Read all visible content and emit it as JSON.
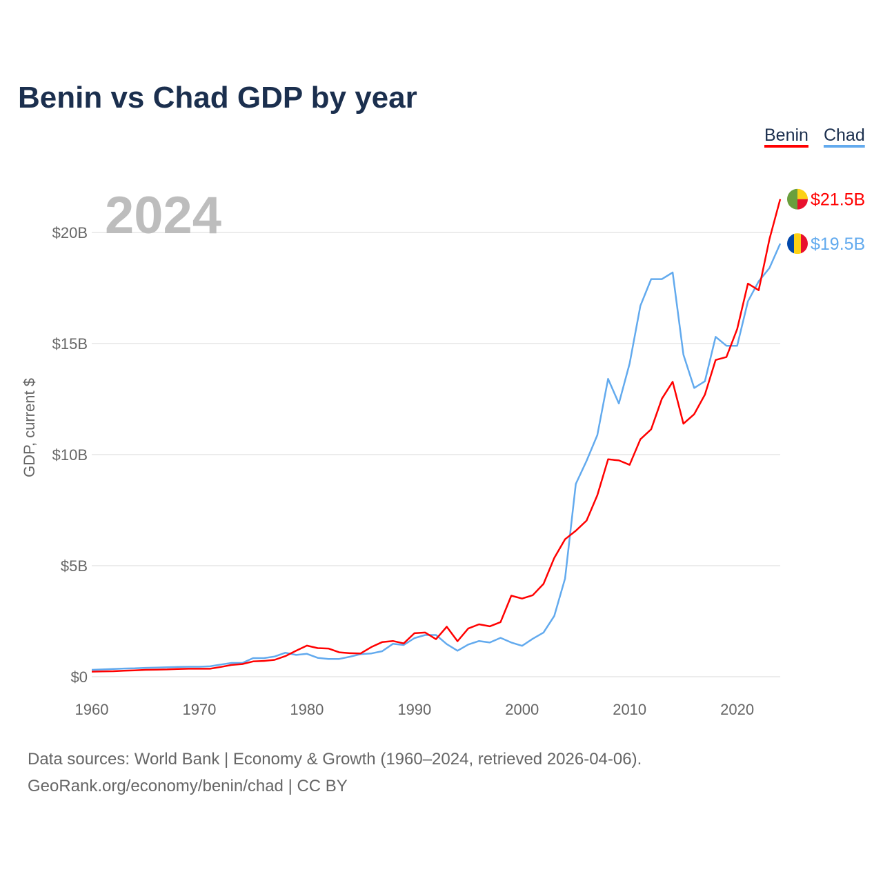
{
  "chart_data": {
    "type": "line",
    "title": "Benin vs Chad GDP by year",
    "ylabel": "GDP, current $",
    "xlabel": "",
    "xlim": [
      1960,
      2024
    ],
    "ylim": [
      0,
      22
    ],
    "x_ticks": [
      1960,
      1970,
      1980,
      1990,
      2000,
      2010,
      2020
    ],
    "x_tick_labels": [
      "1960",
      "1970",
      "1980",
      "1990",
      "2000",
      "2010",
      "2020"
    ],
    "y_ticks": [
      0,
      5,
      10,
      15,
      20
    ],
    "y_tick_labels": [
      "$0",
      "$5B",
      "$10B",
      "$15B",
      "$20B"
    ],
    "grid": true,
    "legend_placement": "top-right",
    "year_label": "2024",
    "x_start": 1960,
    "series": [
      {
        "name": "Benin",
        "color": "#ff0000",
        "end_label": "$21.5B",
        "values": [
          0.23,
          0.24,
          0.25,
          0.27,
          0.29,
          0.31,
          0.32,
          0.33,
          0.35,
          0.36,
          0.36,
          0.36,
          0.44,
          0.53,
          0.57,
          0.69,
          0.71,
          0.76,
          0.93,
          1.17,
          1.4,
          1.29,
          1.27,
          1.1,
          1.06,
          1.05,
          1.34,
          1.56,
          1.61,
          1.5,
          1.96,
          1.99,
          1.69,
          2.25,
          1.6,
          2.17,
          2.36,
          2.27,
          2.46,
          3.65,
          3.52,
          3.67,
          4.18,
          5.35,
          6.19,
          6.57,
          7.03,
          8.17,
          9.79,
          9.74,
          9.54,
          10.69,
          11.14,
          12.52,
          13.28,
          11.39,
          11.82,
          12.7,
          14.26,
          14.39,
          15.65,
          17.7,
          17.4,
          19.7,
          21.5
        ]
      },
      {
        "name": "Chad",
        "color": "#62aaee",
        "end_label": "$19.5B",
        "values": [
          0.31,
          0.33,
          0.35,
          0.37,
          0.38,
          0.4,
          0.41,
          0.43,
          0.44,
          0.45,
          0.45,
          0.47,
          0.55,
          0.62,
          0.62,
          0.84,
          0.84,
          0.91,
          1.08,
          0.98,
          1.03,
          0.85,
          0.8,
          0.8,
          0.9,
          1.02,
          1.05,
          1.15,
          1.48,
          1.43,
          1.74,
          1.88,
          1.88,
          1.47,
          1.17,
          1.45,
          1.61,
          1.54,
          1.75,
          1.54,
          1.39,
          1.71,
          1.99,
          2.74,
          4.42,
          8.68,
          9.72,
          10.88,
          13.41,
          12.3,
          14.1,
          16.7,
          17.9,
          17.9,
          18.2,
          14.5,
          13.0,
          13.3,
          15.3,
          14.9,
          14.9,
          16.9,
          17.8,
          18.4,
          19.5
        ]
      }
    ]
  },
  "source_line1": "Data sources: World Bank | Economy & Growth (1960–2024, retrieved 2026-04-06).",
  "source_line2": "GeoRank.org/economy/benin/chad | CC BY"
}
